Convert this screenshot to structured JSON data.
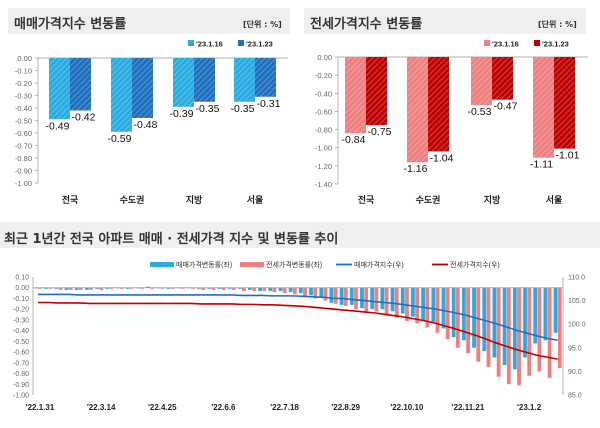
{
  "chart_data": [
    {
      "type": "bar",
      "title": "매매가격지수 변동률",
      "unit": "[단위 : %]",
      "categories": [
        "전국",
        "수도권",
        "지방",
        "서울"
      ],
      "series": [
        {
          "name": "'23.1.16",
          "values": [
            -0.49,
            -0.59,
            -0.39,
            -0.35
          ],
          "color": "#29abe2"
        },
        {
          "name": "'23.1.23",
          "values": [
            -0.42,
            -0.48,
            -0.35,
            -0.31
          ],
          "color": "#1f6fbf"
        }
      ],
      "ylim": [
        -1.0,
        0.0
      ],
      "yticks": [
        "0.00",
        "-0.10",
        "-0.20",
        "-0.30",
        "-0.40",
        "-0.50",
        "-0.60",
        "-0.70",
        "-0.80",
        "-0.90",
        "-1.00"
      ],
      "legend": "top-right"
    },
    {
      "type": "bar",
      "title": "전세가격지수 변동률",
      "unit": "[단위 : %]",
      "categories": [
        "전국",
        "수도권",
        "지방",
        "서울"
      ],
      "series": [
        {
          "name": "'23.1.16",
          "values": [
            -0.84,
            -1.16,
            -0.53,
            -1.11
          ],
          "color": "#f07f7f"
        },
        {
          "name": "'23.1.23",
          "values": [
            -0.75,
            -1.04,
            -0.47,
            -1.01
          ],
          "color": "#c00000"
        }
      ],
      "ylim": [
        -1.4,
        0.0
      ],
      "yticks": [
        "0.00",
        "-0.20",
        "-0.40",
        "-0.60",
        "-0.80",
        "-1.00",
        "-1.20",
        "-1.40"
      ],
      "legend": "top-right"
    },
    {
      "type": "bar+line",
      "title": "최근 1년간 전국 아파트 매매 · 전세가격 지수 및 변동률 추이",
      "xticks": [
        "'22.1.31",
        "'22.3.14",
        "'22.4.25",
        "'22.6.6",
        "'22.7.18",
        "'22.8.29",
        "'22.10.10",
        "'22.11.21",
        "'23.1.2"
      ],
      "ylim_left": [
        -1.0,
        0.1
      ],
      "ylim_right": [
        85.0,
        110.0
      ],
      "yticks_left": [
        "0.10",
        "0.00",
        "-0.10",
        "-0.20",
        "-0.30",
        "-0.40",
        "-0.50",
        "-0.60",
        "-0.70",
        "-0.80",
        "-0.90",
        "-1.00"
      ],
      "yticks_right": [
        "110.0",
        "105.0",
        "100.0",
        "95.0",
        "90.0",
        "85.0"
      ],
      "legend": "top",
      "series": [
        {
          "name": "매매가격변동률(좌)",
          "kind": "bar",
          "axis": "left",
          "color": "#29abe2",
          "values": [
            0.0,
            -0.01,
            -0.01,
            -0.02,
            -0.02,
            -0.02,
            -0.01,
            -0.01,
            0.0,
            -0.01,
            0.0,
            0.01,
            0.0,
            -0.01,
            0.0,
            0.0,
            -0.01,
            -0.01,
            -0.01,
            -0.01,
            -0.01,
            -0.02,
            -0.03,
            -0.03,
            -0.03,
            -0.04,
            -0.05,
            -0.07,
            -0.09,
            -0.14,
            -0.16,
            -0.16,
            -0.19,
            -0.2,
            -0.2,
            -0.22,
            -0.24,
            -0.27,
            -0.3,
            -0.32,
            -0.38,
            -0.46,
            -0.49,
            -0.56,
            -0.59,
            -0.65,
            -0.72,
            -0.76,
            -0.65,
            -0.52,
            -0.49,
            -0.42
          ]
        },
        {
          "name": "전세가격변동률(좌)",
          "kind": "bar",
          "axis": "left",
          "color": "#f08080",
          "values": [
            -0.01,
            -0.01,
            -0.02,
            -0.02,
            -0.02,
            -0.02,
            -0.02,
            -0.01,
            -0.01,
            -0.01,
            -0.01,
            -0.01,
            -0.01,
            -0.01,
            -0.01,
            -0.01,
            -0.02,
            -0.02,
            -0.02,
            -0.02,
            -0.03,
            -0.03,
            -0.03,
            -0.04,
            -0.05,
            -0.06,
            -0.08,
            -0.1,
            -0.12,
            -0.15,
            -0.17,
            -0.2,
            -0.22,
            -0.22,
            -0.25,
            -0.28,
            -0.31,
            -0.33,
            -0.37,
            -0.42,
            -0.48,
            -0.56,
            -0.61,
            -0.69,
            -0.74,
            -0.83,
            -0.9,
            -0.91,
            -0.82,
            -0.78,
            -0.84,
            -0.75
          ]
        },
        {
          "name": "매매가격지수(우)",
          "kind": "line",
          "axis": "right",
          "color": "#1f6fbf",
          "values": [
            106.3,
            106.3,
            106.3,
            106.3,
            106.2,
            106.2,
            106.2,
            106.2,
            106.2,
            106.2,
            106.2,
            106.2,
            106.2,
            106.2,
            106.2,
            106.2,
            106.2,
            106.2,
            106.2,
            106.2,
            106.1,
            106.1,
            106.1,
            106.0,
            106.0,
            106.0,
            105.9,
            105.8,
            105.7,
            105.5,
            105.4,
            105.2,
            105.0,
            104.8,
            104.6,
            104.4,
            104.1,
            103.8,
            103.5,
            103.2,
            102.8,
            102.4,
            101.9,
            101.3,
            100.7,
            100.1,
            99.4,
            98.7,
            98.1,
            97.5,
            97.0,
            96.6
          ]
        },
        {
          "name": "전세가격지수(우)",
          "kind": "line",
          "axis": "right",
          "color": "#c00000",
          "values": [
            104.6,
            104.6,
            104.5,
            104.5,
            104.5,
            104.4,
            104.4,
            104.4,
            104.4,
            104.4,
            104.4,
            104.4,
            104.4,
            104.4,
            104.4,
            104.4,
            104.3,
            104.3,
            104.3,
            104.3,
            104.2,
            104.2,
            104.1,
            104.1,
            104.0,
            103.9,
            103.8,
            103.6,
            103.4,
            103.2,
            103.0,
            102.8,
            102.6,
            102.4,
            102.1,
            101.8,
            101.5,
            101.1,
            100.7,
            100.2,
            99.6,
            99.0,
            98.3,
            97.6,
            96.8,
            96.0,
            95.3,
            94.6,
            94.0,
            93.4,
            93.0,
            92.6
          ]
        }
      ]
    }
  ]
}
